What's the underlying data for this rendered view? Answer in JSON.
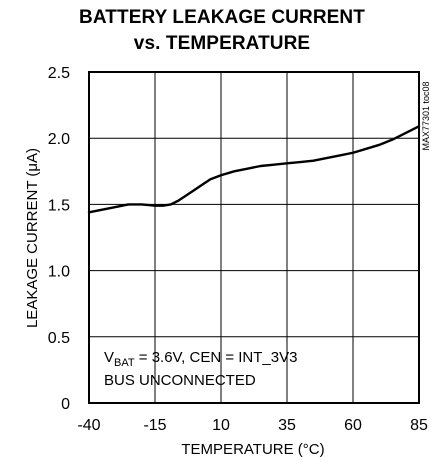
{
  "chart_data": {
    "type": "line",
    "title_lines": [
      "BATTERY LEAKAGE CURRENT",
      "vs. TEMPERATURE"
    ],
    "xlabel": "TEMPERATURE (°C)",
    "ylabel": "LEAKAGE CURRENT (μA)",
    "xlim": [
      -40,
      85
    ],
    "ylim": [
      0,
      2.5
    ],
    "xticks": [
      -40,
      -15,
      10,
      35,
      60,
      85
    ],
    "yticks": [
      0,
      0.5,
      1.0,
      1.5,
      2.0,
      2.5
    ],
    "xtick_labels": [
      "-40",
      "-15",
      "10",
      "35",
      "60",
      "85"
    ],
    "ytick_labels": [
      "0",
      "0.5",
      "1.0",
      "1.5",
      "2.0",
      "2.5"
    ],
    "grid": true,
    "series": [
      {
        "x": [
          -40,
          -35,
          -30,
          -25,
          -20,
          -15,
          -12,
          -9,
          -6,
          -3,
          0,
          3,
          6,
          10,
          15,
          20,
          25,
          30,
          35,
          40,
          45,
          50,
          55,
          60,
          65,
          70,
          75,
          80,
          85
        ],
        "y": [
          1.44,
          1.46,
          1.48,
          1.5,
          1.5,
          1.49,
          1.49,
          1.5,
          1.53,
          1.57,
          1.61,
          1.65,
          1.69,
          1.72,
          1.75,
          1.77,
          1.79,
          1.8,
          1.81,
          1.82,
          1.83,
          1.85,
          1.87,
          1.89,
          1.92,
          1.95,
          1.99,
          2.04,
          2.09
        ]
      }
    ],
    "annotation": {
      "line1_main": "V",
      "line1_sub": "BAT",
      "line1_rest": " = 3.6V, CEN = INT_3V3",
      "line2": "BUS UNCONNECTED"
    },
    "side_code": "MAX77301 toc08"
  }
}
